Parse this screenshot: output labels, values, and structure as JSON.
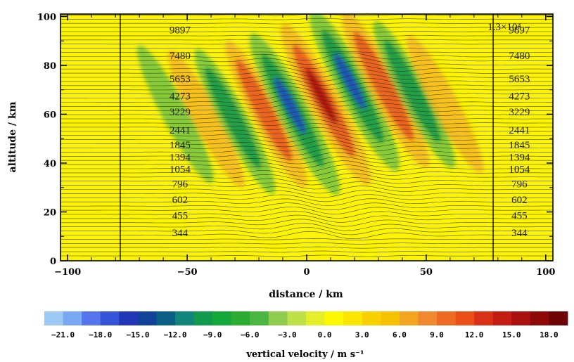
{
  "chart_data": {
    "type": "heatmap",
    "xlabel": "distance / km",
    "ylabel": "altitude / km",
    "xlim": [
      -103,
      103
    ],
    "ylim": [
      0,
      101
    ],
    "xticks": [
      -100,
      -50,
      0,
      50,
      100
    ],
    "yticks": [
      0,
      20,
      40,
      60,
      80,
      100
    ],
    "vertical_lines_x": [
      -78,
      78
    ],
    "top_right_annotation": "1.3×10⁴",
    "isentrope_labels": [
      {
        "text": "9897",
        "y": 94.5
      },
      {
        "text": "7480",
        "y": 84
      },
      {
        "text": "5653",
        "y": 74.5
      },
      {
        "text": "4273",
        "y": 67.5
      },
      {
        "text": "3229",
        "y": 61
      },
      {
        "text": "2441",
        "y": 53.5
      },
      {
        "text": "1845",
        "y": 47.5
      },
      {
        "text": "1394",
        "y": 42.5
      },
      {
        "text": "1054",
        "y": 37.5
      },
      {
        "text": "796",
        "y": 31.5
      },
      {
        "text": "602",
        "y": 25
      },
      {
        "text": "455",
        "y": 18.5
      },
      {
        "text": "344",
        "y": 11.5
      }
    ],
    "isentrope_label_x": {
      "left": -53,
      "right": 89
    },
    "wave_packets": [
      {
        "x": -55,
        "y": 60,
        "sign": -1,
        "amp": 0.35
      },
      {
        "x": -42,
        "y": 58,
        "sign": 1,
        "amp": 0.35
      },
      {
        "x": -30,
        "y": 57,
        "sign": -1,
        "amp": 0.55
      },
      {
        "x": -17,
        "y": 60,
        "sign": 1,
        "amp": 0.6
      },
      {
        "x": -5,
        "y": 60,
        "sign": -1,
        "amp": 1.0
      },
      {
        "x": 8,
        "y": 64,
        "sign": 1,
        "amp": 1.0
      },
      {
        "x": 20,
        "y": 70,
        "sign": -1,
        "amp": 1.0
      },
      {
        "x": 33,
        "y": 70,
        "sign": 1,
        "amp": 0.85
      },
      {
        "x": 45,
        "y": 68,
        "sign": -1,
        "amp": 0.6
      },
      {
        "x": 58,
        "y": 64,
        "sign": 1,
        "amp": 0.35
      }
    ],
    "colorbar": {
      "title": "vertical velocity /  m s⁻¹",
      "tick_labels": [
        "-21.0",
        "-18.0",
        "-15.0",
        "-12.0",
        "-9.0",
        "-6.0",
        "-3.0",
        "0.0",
        "3.0",
        "6.0",
        "9.0",
        "12.0",
        "15.0",
        "18.0"
      ],
      "min": -22.5,
      "max": 19.5,
      "step": 1.5,
      "colors": [
        "#9ccaf4",
        "#79a9f2",
        "#5675ec",
        "#3554d8",
        "#2236b8",
        "#11429a",
        "#0a5f86",
        "#11857a",
        "#119a4c",
        "#14a83a",
        "#2dac34",
        "#4cb642",
        "#8fcc4e",
        "#bce248",
        "#e4ef2a",
        "#fcf800",
        "#fbe600",
        "#f9d000",
        "#f5c100",
        "#f2a620",
        "#f08830",
        "#ee6a23",
        "#e94f16",
        "#da3016",
        "#c41c12",
        "#a9100d",
        "#8e0a08",
        "#6e0405"
      ]
    }
  }
}
